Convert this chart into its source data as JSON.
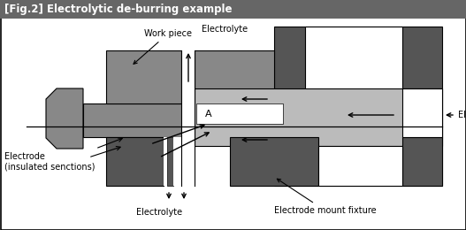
{
  "title": "[Fig.2] Electrolytic de-burring example",
  "title_bg": "#666666",
  "title_fg": "#ffffff",
  "dark": "#555555",
  "mid": "#888888",
  "light": "#bbbbbb",
  "white": "#ffffff",
  "black": "#000000",
  "label_work_piece": "Work piece",
  "label_electrolyte_top": "Electrolyte",
  "label_electrolyte_bot": "Electrolyte",
  "label_electrolyte_right": "Electrolyte",
  "label_electrode": "Electrode\n(insulated senctions)",
  "label_mount": "Electrode mount fixture",
  "label_A": "A",
  "fig_w": 5.27,
  "fig_h": 2.6,
  "dpi": 100
}
